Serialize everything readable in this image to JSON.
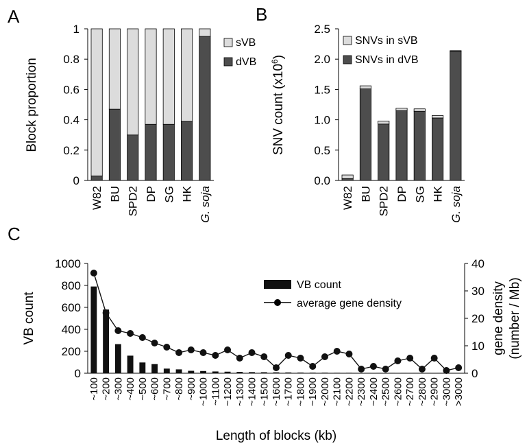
{
  "chart_data": [
    {
      "panel": "A",
      "type": "bar",
      "stacked": true,
      "categories": [
        "W82",
        "BU",
        "SPD2",
        "DP",
        "SG",
        "HK",
        "G. soja"
      ],
      "italic_categories": [
        "G. soja"
      ],
      "series": [
        {
          "name": "dVB",
          "color": "#4d4d4d",
          "values": [
            0.03,
            0.47,
            0.3,
            0.37,
            0.37,
            0.39,
            0.95
          ]
        },
        {
          "name": "sVB",
          "color": "#dcdcdc",
          "values": [
            0.97,
            0.53,
            0.7,
            0.63,
            0.63,
            0.61,
            0.05
          ]
        }
      ],
      "legend_order": [
        "sVB",
        "dVB"
      ],
      "ylabel": "Block proportion",
      "ylim": [
        0,
        1
      ],
      "yticks": [
        "0",
        "0.2",
        "0.4",
        "0.6",
        "0.8",
        "1"
      ],
      "legend_position": "right"
    },
    {
      "panel": "B",
      "type": "bar",
      "stacked": true,
      "categories": [
        "W82",
        "BU",
        "SPD2",
        "DP",
        "SG",
        "HK",
        "G. soja"
      ],
      "italic_categories": [
        "G. soja"
      ],
      "series": [
        {
          "name": "SNVs in dVB",
          "color": "#4d4d4d",
          "values": [
            0.03,
            1.51,
            0.93,
            1.15,
            1.14,
            1.03,
            2.13
          ]
        },
        {
          "name": "SNVs in sVB",
          "color": "#dcdcdc",
          "values": [
            0.06,
            0.05,
            0.05,
            0.04,
            0.04,
            0.04,
            0.01
          ]
        }
      ],
      "legend_order": [
        "SNVs in sVB",
        "SNVs in dVB"
      ],
      "ylabel": "SNV count (x10",
      "ylabel_sup": "6",
      "ylabel_end": ")",
      "ylim": [
        0,
        2.5
      ],
      "yticks": [
        "0.0",
        "0.5",
        "1.0",
        "1.5",
        "2.0",
        "2.5"
      ],
      "legend_position": "top-right"
    },
    {
      "panel": "C",
      "type": "bar+line",
      "categories": [
        "~100",
        "~200",
        "~300",
        "~400",
        "~500",
        "~600",
        "~700",
        "~800",
        "~900",
        "~1000",
        "~1100",
        "~1200",
        "~1300",
        "~1400",
        "~1500",
        "~1600",
        "~1700",
        "~1800",
        "~1900",
        "~2000",
        "~2100",
        "~2200",
        "~2300",
        "~2400",
        "~2500",
        "~2600",
        "~2700",
        "~2800",
        "~2900",
        "~3000",
        ">3000"
      ],
      "bar_series": {
        "name": "VB count",
        "color": "#111111",
        "values": [
          790,
          580,
          265,
          160,
          98,
          83,
          42,
          35,
          22,
          20,
          16,
          14,
          12,
          10,
          9,
          8,
          7,
          6,
          5,
          5,
          4,
          4,
          3,
          3,
          3,
          3,
          2,
          2,
          2,
          2,
          2
        ]
      },
      "line_series": {
        "name": "average gene density",
        "color": "#111111",
        "values": [
          36.5,
          22,
          15.5,
          14.5,
          13,
          11,
          9.5,
          7.5,
          8.5,
          7.5,
          6.5,
          8.5,
          5.5,
          7.5,
          6,
          2,
          6.5,
          5.5,
          2.5,
          6,
          8,
          7,
          1.5,
          2.5,
          1.5,
          4.5,
          5.5,
          1.5,
          5.5,
          1,
          2
        ]
      },
      "xlabel": "Length of blocks (kb)",
      "ylabel_left": "VB count",
      "ylabel_right_1": "gene density",
      "ylabel_right_2": "(number / Mb)",
      "ylim_left": [
        0,
        1000
      ],
      "ylim_right": [
        0,
        40
      ],
      "yticks_left": [
        "0",
        "200",
        "400",
        "600",
        "800",
        "1000"
      ],
      "yticks_right": [
        "0",
        "10",
        "20",
        "30",
        "40"
      ],
      "legend_position": "top-right"
    }
  ]
}
